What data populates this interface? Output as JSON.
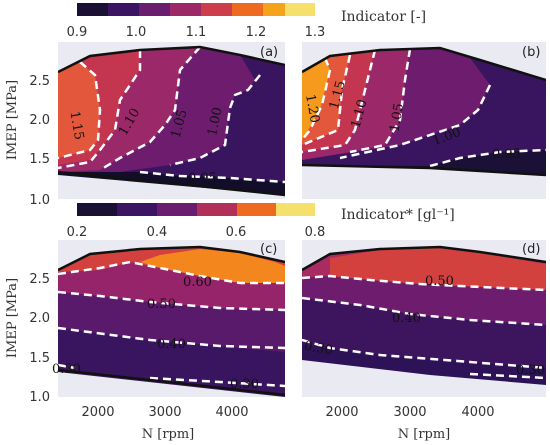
{
  "chart_data": [
    {
      "type": "heatmap",
      "panel": "(a)",
      "xlabel": "",
      "ylabel": "IMEP [MPa]",
      "x_ticks": [],
      "y_ticks": [
        "1.0",
        "1.5",
        "2.0",
        "2.5"
      ],
      "xlim": [
        1500,
        5000
      ],
      "ylim": [
        1.0,
        2.9
      ],
      "colorbar": {
        "label": "Indicator [-]",
        "ticks": [
          "0.9",
          "1.0",
          "1.1",
          "1.2",
          "1.3"
        ],
        "range": [
          0.9,
          1.3
        ]
      },
      "contours": [
        {
          "label": "1.15",
          "value": 1.15
        },
        {
          "label": "1.10",
          "value": 1.1
        },
        {
          "label": "1.05",
          "value": 1.05
        },
        {
          "label": "1.00",
          "value": 1.0
        },
        {
          "label": "0.95",
          "value": 0.95
        }
      ]
    },
    {
      "type": "heatmap",
      "panel": "(b)",
      "xlabel": "",
      "ylabel": "",
      "x_ticks": [],
      "y_ticks": [],
      "xlim": [
        1500,
        5000
      ],
      "ylim": [
        1.0,
        2.9
      ],
      "colorbar": {
        "label": "Indicator [-]",
        "ticks": [
          "0.9",
          "1.0",
          "1.1",
          "1.2",
          "1.3"
        ],
        "range": [
          0.9,
          1.3
        ]
      },
      "contours": [
        {
          "label": "1.20",
          "value": 1.2
        },
        {
          "label": "1.15",
          "value": 1.15
        },
        {
          "label": "1.10",
          "value": 1.1
        },
        {
          "label": "1.05",
          "value": 1.05
        },
        {
          "label": "1.00",
          "value": 1.0
        },
        {
          "label": "0.95",
          "value": 0.95
        }
      ]
    },
    {
      "type": "heatmap",
      "panel": "(c)",
      "xlabel": "N [rpm]",
      "ylabel": "IMEP [MPa]",
      "x_ticks": [
        "2000",
        "3000",
        "4000"
      ],
      "y_ticks": [
        "1.0",
        "1.5",
        "2.0",
        "2.5"
      ],
      "xlim": [
        1500,
        5000
      ],
      "ylim": [
        1.0,
        2.9
      ],
      "colorbar": {
        "label": "Indicator* [gl⁻¹]",
        "ticks": [
          "0.2",
          "0.4",
          "0.6",
          "0.8"
        ],
        "range": [
          0.2,
          0.8
        ]
      },
      "contours": [
        {
          "label": "0.60",
          "value": 0.6
        },
        {
          "label": "0.50",
          "value": 0.5
        },
        {
          "label": "0.40",
          "value": 0.4
        },
        {
          "label": "0.30",
          "value": 0.3
        },
        {
          "label": "0.30",
          "value": 0.3
        }
      ]
    },
    {
      "type": "heatmap",
      "panel": "(d)",
      "xlabel": "N [rpm]",
      "ylabel": "",
      "x_ticks": [
        "2000",
        "3000",
        "4000"
      ],
      "y_ticks": [],
      "xlim": [
        1500,
        5000
      ],
      "ylim": [
        1.0,
        2.9
      ],
      "colorbar": {
        "label": "Indicator* [gl⁻¹]",
        "ticks": [
          "0.2",
          "0.4",
          "0.6",
          "0.8"
        ],
        "range": [
          0.2,
          0.8
        ]
      },
      "contours": [
        {
          "label": "0.50",
          "value": 0.5
        },
        {
          "label": "0.40",
          "value": 0.4
        },
        {
          "label": "0.30",
          "value": 0.3
        },
        {
          "label": "0.30",
          "value": 0.3
        }
      ]
    }
  ],
  "colors": {
    "background": "#eaeaf2",
    "boundary": "#111111",
    "contour_line": "#ffffff",
    "colormap": [
      "#0e0b22",
      "#31135e",
      "#5c1a6c",
      "#87216b",
      "#b12e5a",
      "#db4a40",
      "#f3771a",
      "#f8a91a",
      "#f3df63"
    ]
  }
}
